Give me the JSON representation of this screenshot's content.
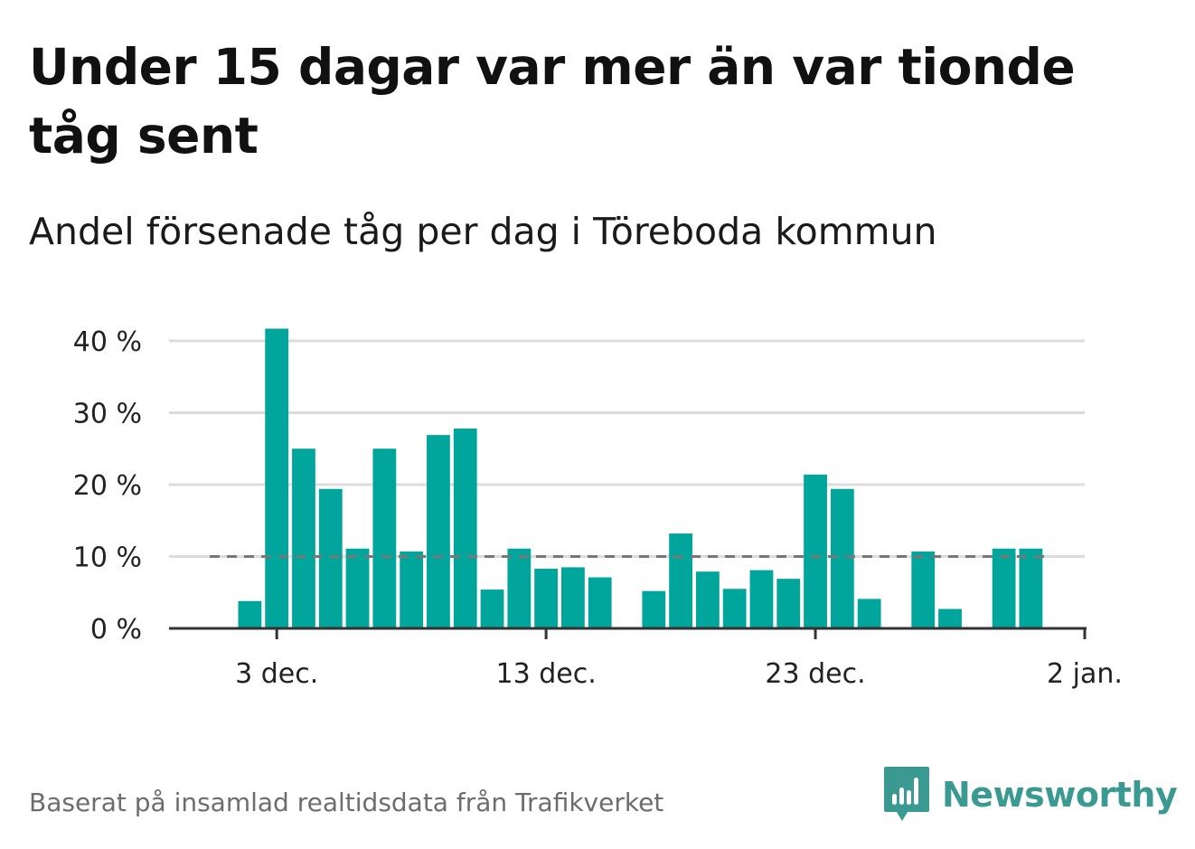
{
  "title": "Under 15 dagar var mer än var tionde tåg sent",
  "subtitle": "Andel försenade tåg per dag i Töreboda kommun",
  "footer": "Baserat på insamlad realtidsdata från Trafikverket",
  "brand": {
    "name": "Newsworthy",
    "icon": "newsworthy-logo-icon",
    "color": "#3a9a91"
  },
  "colors": {
    "bar": "#00a59b",
    "grid": "#dcdcdc",
    "axis": "#333333",
    "reference": "#777777"
  },
  "chart_data": {
    "type": "bar",
    "x_type": "date",
    "x": [
      "2023-12-02",
      "2023-12-03",
      "2023-12-04",
      "2023-12-05",
      "2023-12-06",
      "2023-12-07",
      "2023-12-08",
      "2023-12-09",
      "2023-12-10",
      "2023-12-11",
      "2023-12-12",
      "2023-12-13",
      "2023-12-14",
      "2023-12-15",
      "2023-12-16",
      "2023-12-17",
      "2023-12-18",
      "2023-12-19",
      "2023-12-20",
      "2023-12-21",
      "2023-12-22",
      "2023-12-23",
      "2023-12-24",
      "2023-12-25",
      "2023-12-26",
      "2023-12-27",
      "2023-12-28",
      "2023-12-29",
      "2023-12-30",
      "2023-12-31"
    ],
    "values": [
      3.8,
      41.7,
      25.0,
      19.4,
      11.1,
      25.0,
      10.7,
      26.9,
      27.8,
      5.4,
      11.1,
      8.3,
      8.5,
      7.1,
      null,
      5.2,
      13.2,
      7.9,
      5.5,
      8.1,
      6.9,
      21.4,
      19.4,
      4.1,
      null,
      10.7,
      2.7,
      null,
      11.1,
      11.1
    ],
    "reference_line": 10,
    "xticks": [
      "3 dec.",
      "13 dec.",
      "23 dec.",
      "2 jan."
    ],
    "xtick_dates": [
      "2023-12-03",
      "2023-12-13",
      "2023-12-23",
      "2024-01-02"
    ],
    "yticks": [
      "0 %",
      "10 %",
      "20 %",
      "30 %",
      "40 %"
    ],
    "ytick_values": [
      0,
      10,
      20,
      30,
      40
    ],
    "ylim": [
      0,
      40
    ],
    "xlim": [
      "2023-11-29",
      "2024-01-02"
    ],
    "grid": true,
    "title": "Andel försenade tåg per dag i Töreboda kommun",
    "xlabel": "",
    "ylabel": ""
  }
}
